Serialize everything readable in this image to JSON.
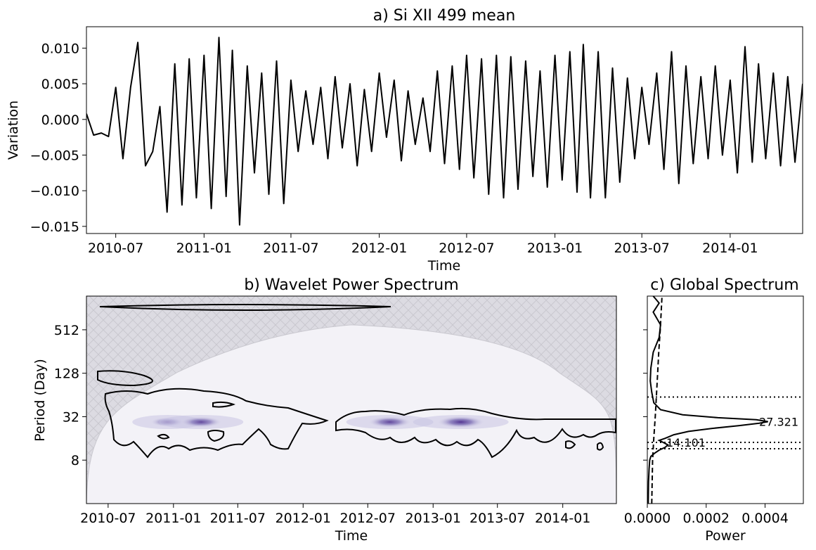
{
  "chart_data": [
    {
      "panel": "a",
      "type": "line",
      "title": "a) Si XII 499 mean",
      "xlabel": "Time",
      "ylabel": "Variation",
      "ylim": [
        -0.016,
        0.013
      ],
      "xlim": [
        "2010-05-01",
        "2014-06-01"
      ],
      "xticks": [
        "2010-07",
        "2011-01",
        "2011-07",
        "2012-01",
        "2012-07",
        "2013-01",
        "2013-07",
        "2014-01"
      ],
      "yticks": [
        "−0.015",
        "−0.010",
        "−0.005",
        "0.000",
        "0.005",
        "0.010"
      ],
      "ytick_values": [
        -0.015,
        -0.01,
        -0.005,
        0.0,
        0.005,
        0.01
      ],
      "series": [
        {
          "color": "#000000",
          "x": [
            "2010-05-01",
            "2010-05-16",
            "2010-06-01",
            "2010-06-16",
            "2010-07-01",
            "2010-07-16",
            "2010-08-01",
            "2010-08-16",
            "2010-09-01",
            "2010-09-16",
            "2010-10-01",
            "2010-10-16",
            "2010-11-01",
            "2010-11-16",
            "2010-12-01",
            "2010-12-16",
            "2011-01-01",
            "2011-01-16",
            "2011-02-01",
            "2011-02-16",
            "2011-03-01",
            "2011-03-16",
            "2011-04-01",
            "2011-04-16",
            "2011-05-01",
            "2011-05-16",
            "2011-06-01",
            "2011-06-16",
            "2011-07-01",
            "2011-07-16",
            "2011-08-01",
            "2011-08-16",
            "2011-09-01",
            "2011-09-16",
            "2011-10-01",
            "2011-10-16",
            "2011-11-01",
            "2011-11-16",
            "2011-12-01",
            "2011-12-16",
            "2012-01-01",
            "2012-01-16",
            "2012-02-01",
            "2012-02-16",
            "2012-03-01",
            "2012-03-16",
            "2012-04-01",
            "2012-04-16",
            "2012-05-01",
            "2012-05-16",
            "2012-06-01",
            "2012-06-16",
            "2012-07-01",
            "2012-07-16",
            "2012-08-01",
            "2012-08-16",
            "2012-09-01",
            "2012-09-16",
            "2012-10-01",
            "2012-10-16",
            "2012-11-01",
            "2012-11-16",
            "2012-12-01",
            "2012-12-16",
            "2013-01-01",
            "2013-01-16",
            "2013-02-01",
            "2013-02-16",
            "2013-03-01",
            "2013-03-16",
            "2013-04-01",
            "2013-04-16",
            "2013-05-01",
            "2013-05-16",
            "2013-06-01",
            "2013-06-16",
            "2013-07-01",
            "2013-07-16",
            "2013-08-01",
            "2013-08-16",
            "2013-09-01",
            "2013-09-16",
            "2013-10-01",
            "2013-10-16",
            "2013-11-01",
            "2013-11-16",
            "2013-12-01",
            "2013-12-16",
            "2014-01-01",
            "2014-01-16",
            "2014-02-01",
            "2014-02-16",
            "2014-03-01",
            "2014-03-16",
            "2014-04-01",
            "2014-04-16",
            "2014-05-01",
            "2014-05-16",
            "2014-06-01"
          ],
          "y": [
            0.0008,
            -0.0022,
            -0.0019,
            -0.0024,
            0.0045,
            -0.0055,
            0.0045,
            0.0108,
            -0.0065,
            -0.0045,
            0.0018,
            -0.013,
            0.0078,
            -0.012,
            0.0085,
            -0.011,
            0.009,
            -0.0125,
            0.0115,
            -0.0108,
            0.0097,
            -0.0148,
            0.0075,
            -0.0075,
            0.0065,
            -0.0105,
            0.0082,
            -0.0118,
            0.0055,
            -0.0045,
            0.004,
            -0.0035,
            0.0045,
            -0.0055,
            0.006,
            -0.004,
            0.005,
            -0.0065,
            0.0042,
            -0.0045,
            0.0065,
            -0.0025,
            0.0055,
            -0.0058,
            0.004,
            -0.0035,
            0.003,
            -0.0045,
            0.0068,
            -0.0062,
            0.0075,
            -0.007,
            0.009,
            -0.0082,
            0.0085,
            -0.0105,
            0.009,
            -0.011,
            0.0088,
            -0.0098,
            0.0082,
            -0.008,
            0.0068,
            -0.0095,
            0.009,
            -0.0085,
            0.0095,
            -0.0102,
            0.0105,
            -0.011,
            0.0095,
            -0.011,
            0.0072,
            -0.0088,
            0.0058,
            -0.0055,
            0.0045,
            -0.0035,
            0.0065,
            -0.007,
            0.0095,
            -0.009,
            0.0075,
            -0.0062,
            0.006,
            -0.0055,
            0.0075,
            -0.005,
            0.0055,
            -0.0075,
            0.0102,
            -0.006,
            0.0078,
            -0.0055,
            0.0065,
            -0.0065,
            0.006,
            -0.006,
            0.005
          ]
        }
      ]
    },
    {
      "panel": "b",
      "type": "heatmap",
      "title": "b) Wavelet Power Spectrum",
      "xlabel": "Time",
      "ylabel": "Period (Day)",
      "scale": "log2",
      "ylim": [
        2,
        1500
      ],
      "yticks": [
        "8",
        "32",
        "128",
        "512"
      ],
      "ytick_values": [
        8,
        32,
        128,
        512
      ],
      "xticks": [
        "2010-07",
        "2011-01",
        "2011-07",
        "2012-01",
        "2012-07",
        "2013-01",
        "2013-07",
        "2014-01"
      ],
      "colormap": "Purples",
      "cone_of_influence_color": "#dcdbe2",
      "interior_color": "#f3f2f7",
      "power_peaks": [
        {
          "center": "2010-12-15",
          "period": 27,
          "strength": 0.45
        },
        {
          "center": "2011-03-20",
          "period": 27,
          "strength": 0.7
        },
        {
          "center": "2012-09-01",
          "period": 27,
          "strength": 0.75
        },
        {
          "center": "2013-03-20",
          "period": 27,
          "strength": 0.9
        }
      ]
    },
    {
      "panel": "c",
      "type": "line",
      "title": "c) Global Spectrum",
      "xlabel": "Power",
      "xlim": [
        0,
        0.00053
      ],
      "xticks": [
        "0.0000",
        "0.0002",
        "0.0004"
      ],
      "xtick_values": [
        0,
        0.0002,
        0.0004
      ],
      "peaks": [
        {
          "label": "27.321",
          "period": 27.321,
          "color": "#800080"
        },
        {
          "label": "14.101",
          "period": 14.101,
          "color": "#800080"
        }
      ],
      "dotted_lines_period": [
        60,
        14.1,
        11.5
      ],
      "spectrum": {
        "period": [
          2,
          4,
          6,
          8,
          9,
          10,
          11,
          12,
          13,
          14,
          15,
          16,
          18,
          20,
          22,
          24,
          26,
          27.3,
          29,
          31,
          34,
          40,
          50,
          70,
          100,
          150,
          250,
          400,
          600,
          900,
          1200,
          1500
        ],
        "power": [
          3e-06,
          4e-06,
          6e-06,
          8e-06,
          1.2e-05,
          2.5e-05,
          4e-05,
          6e-05,
          7e-05,
          5.5e-05,
          4e-05,
          6e-05,
          9e-05,
          0.00014,
          0.00022,
          0.00031,
          0.00038,
          0.00041,
          0.00037,
          0.00024,
          0.00012,
          4.5e-05,
          2.2e-05,
          1.5e-05,
          1e-05,
          1.2e-05,
          2e-05,
          4e-05,
          4.5e-05,
          2e-05,
          4e-05,
          2e-05
        ]
      },
      "significance": {
        "period": [
          2,
          8,
          16,
          32,
          64,
          128,
          256,
          512,
          1500
        ],
        "power": [
          1.5e-05,
          1.8e-05,
          2.2e-05,
          2.7e-05,
          3.1e-05,
          3.5e-05,
          3.9e-05,
          4.4e-05,
          5e-05
        ]
      }
    }
  ]
}
